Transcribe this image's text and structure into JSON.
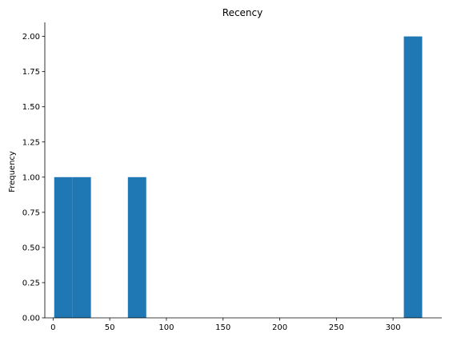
{
  "chart_data": {
    "type": "bar",
    "title": "Recency",
    "xlabel": "",
    "ylabel": "Frequency",
    "xlim": [
      -7.3,
      343
    ],
    "ylim": [
      0,
      2.1
    ],
    "xticks": [
      0,
      50,
      100,
      150,
      200,
      250,
      300
    ],
    "yticks": [
      "0.00",
      "0.25",
      "0.50",
      "0.75",
      "1.00",
      "1.25",
      "1.50",
      "1.75",
      "2.00"
    ],
    "bin_width": 16.2,
    "bins": [
      {
        "x0": 1.0,
        "x1": 17.2,
        "count": 1
      },
      {
        "x0": 17.2,
        "x1": 33.4,
        "count": 1
      },
      {
        "x0": 66.0,
        "x1": 82.2,
        "count": 1
      },
      {
        "x0": 309.5,
        "x1": 325.7,
        "count": 2
      }
    ],
    "bar_color": "#1f77b4",
    "grid": false,
    "legend": "none"
  }
}
